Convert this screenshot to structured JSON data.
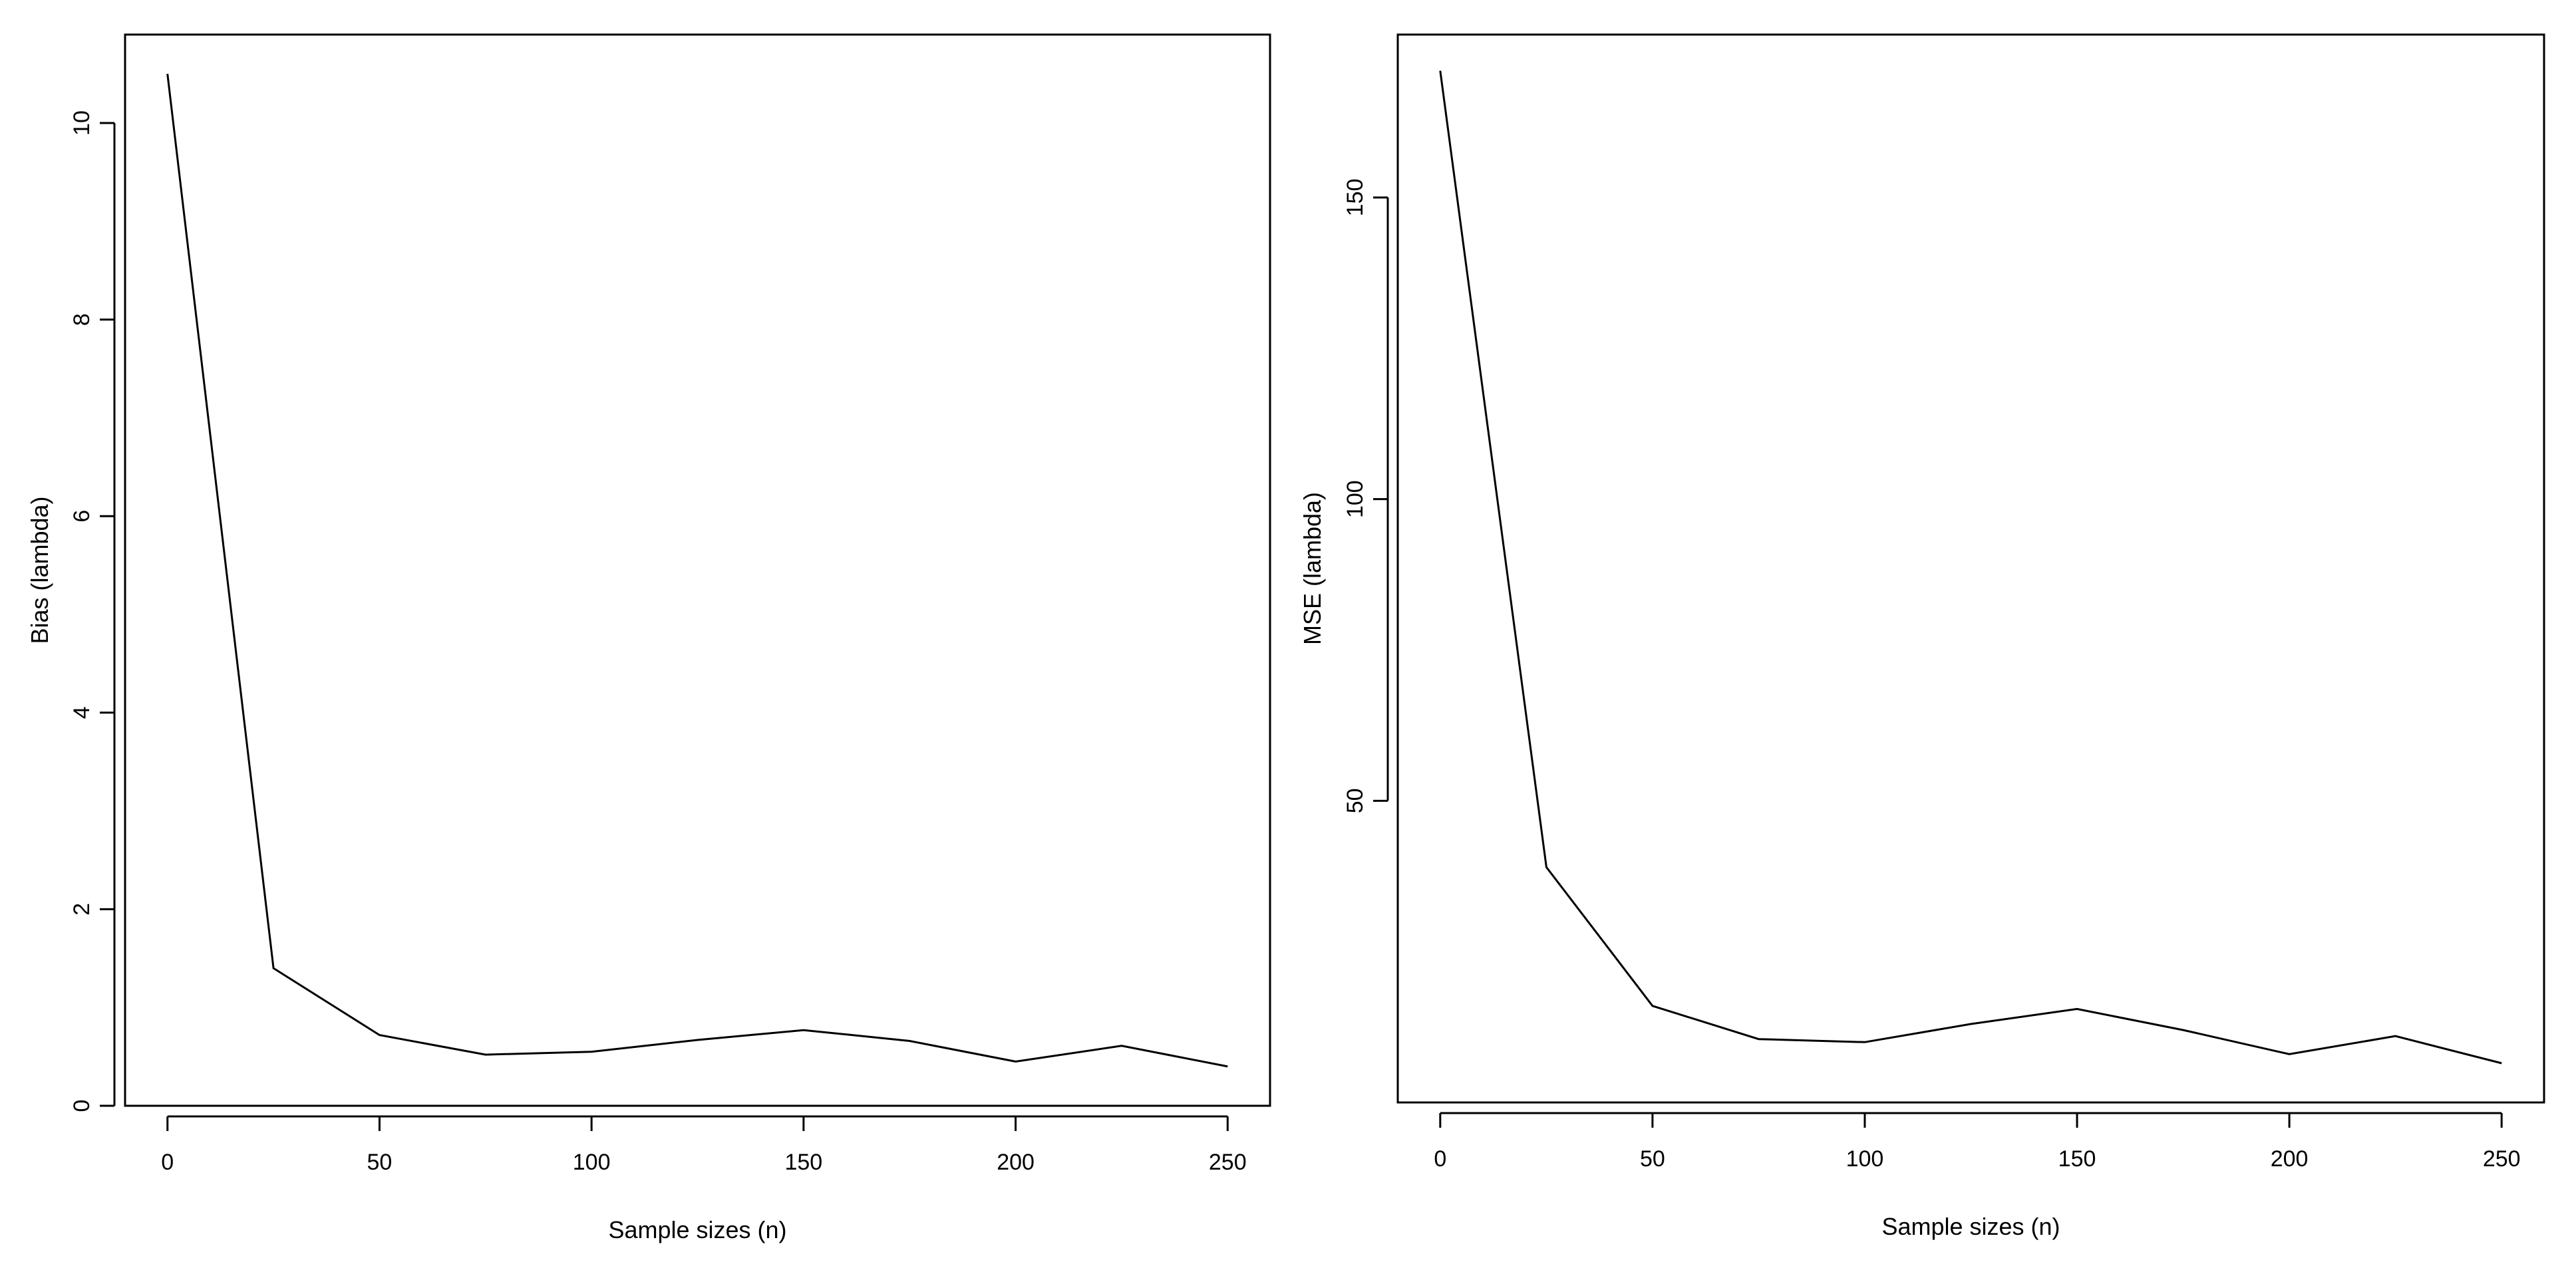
{
  "chart_data": [
    {
      "type": "line",
      "title": "",
      "xlabel": "Sample sizes (n)",
      "ylabel": "Bias (lambda)",
      "xlim": [
        -10,
        260
      ],
      "ylim": [
        0,
        10.9
      ],
      "x_ticks": [
        0,
        50,
        100,
        150,
        200,
        250
      ],
      "y_ticks": [
        0,
        2,
        4,
        6,
        8,
        10
      ],
      "grid": false,
      "series": [
        {
          "x": [
            0,
            25,
            50,
            75,
            100,
            125,
            150,
            175,
            200,
            225,
            250
          ],
          "y": [
            10.5,
            1.4,
            0.72,
            0.52,
            0.55,
            0.67,
            0.77,
            0.66,
            0.45,
            0.61,
            0.4
          ]
        }
      ]
    },
    {
      "type": "line",
      "title": "",
      "xlabel": "Sample sizes (n)",
      "ylabel": "MSE (lambda)",
      "xlim": [
        -10,
        260
      ],
      "ylim": [
        0,
        177
      ],
      "x_ticks": [
        0,
        50,
        100,
        150,
        200,
        250
      ],
      "y_ticks": [
        50,
        100,
        150
      ],
      "grid": false,
      "series": [
        {
          "x": [
            0,
            25,
            50,
            75,
            100,
            125,
            150,
            175,
            200,
            225,
            250
          ],
          "y": [
            171,
            39,
            16,
            10.5,
            10,
            13,
            15.5,
            12,
            8,
            11,
            6.5
          ]
        }
      ]
    }
  ]
}
